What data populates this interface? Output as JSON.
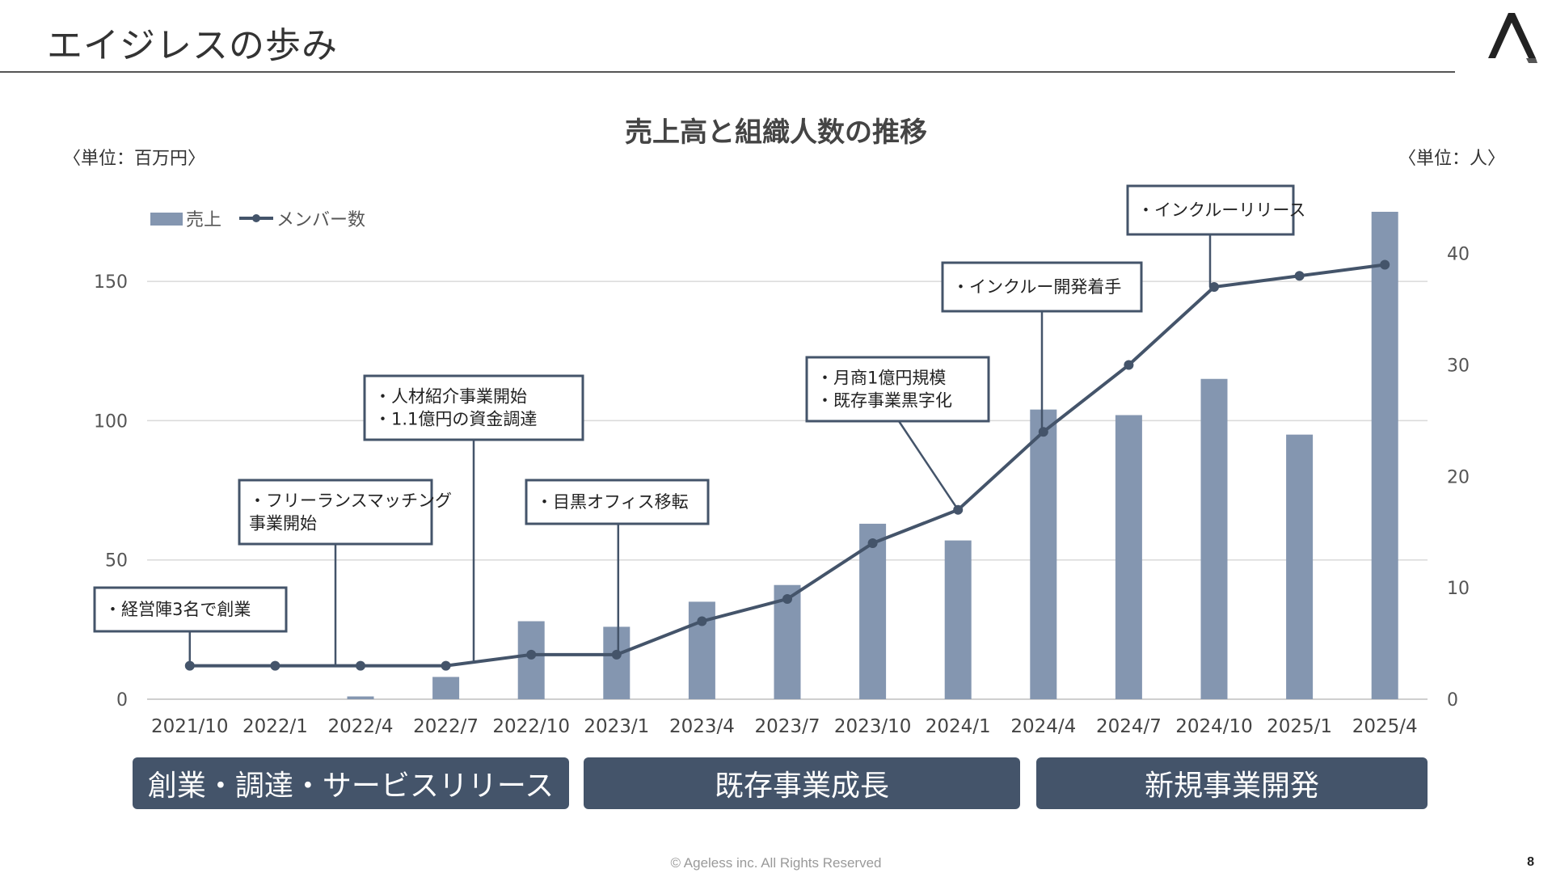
{
  "page": {
    "title": "エイジレスの歩み",
    "footer": "© Ageless inc. All Rights Reserved",
    "page_number": "8"
  },
  "colors": {
    "bar": "#8496b0",
    "line": "#44546a",
    "grid": "#d9d9d9",
    "phase": "#44546a"
  },
  "chart_data": {
    "type": "bar",
    "title": "売上高と組織人数の推移",
    "left_unit": "〈単位：百万円〉",
    "right_unit": "〈単位：人〉",
    "categories": [
      "2021/10",
      "2022/1",
      "2022/4",
      "2022/7",
      "2022/10",
      "2023/1",
      "2023/4",
      "2023/7",
      "2023/10",
      "2024/1",
      "2024/4",
      "2024/7",
      "2024/10",
      "2025/1",
      "2025/4"
    ],
    "series": [
      {
        "name": "売上",
        "type": "bar",
        "axis": "left",
        "values": [
          0,
          0,
          1,
          8,
          28,
          26,
          35,
          41,
          63,
          57,
          104,
          102,
          115,
          95,
          175
        ]
      },
      {
        "name": "メンバー数",
        "type": "line",
        "axis": "right",
        "values": [
          3,
          3,
          3,
          3,
          4,
          4,
          7,
          9,
          14,
          17,
          24,
          30,
          37,
          38,
          39
        ]
      }
    ],
    "y_left": {
      "min": 0,
      "max": 175,
      "ticks": [
        0,
        50,
        100,
        150
      ]
    },
    "y_right": {
      "min": 0,
      "max": 43.75,
      "ticks": [
        0,
        10,
        20,
        30,
        40
      ]
    },
    "grid": true,
    "legend_position": "top-left",
    "annotations": [
      {
        "index": 0,
        "lines": [
          "・経営陣3名で創業"
        ]
      },
      {
        "index": 2,
        "lines": [
          "・フリーランスマッチング",
          "事業開始"
        ]
      },
      {
        "index": 3,
        "lines": [
          "・人材紹介事業開始",
          "・1.1億円の資金調達"
        ]
      },
      {
        "index": 5,
        "lines": [
          "・目黒オフィス移転"
        ]
      },
      {
        "index": 9,
        "lines": [
          "・月商1億円規模",
          "・既存事業黒字化"
        ]
      },
      {
        "index": 10,
        "lines": [
          "・インクルー開発着手"
        ]
      },
      {
        "index": 12,
        "lines": [
          "・インクルーリリース"
        ]
      }
    ]
  },
  "phases": [
    "創業・調達・サービスリリース",
    "既存事業成長",
    "新規事業開発"
  ]
}
